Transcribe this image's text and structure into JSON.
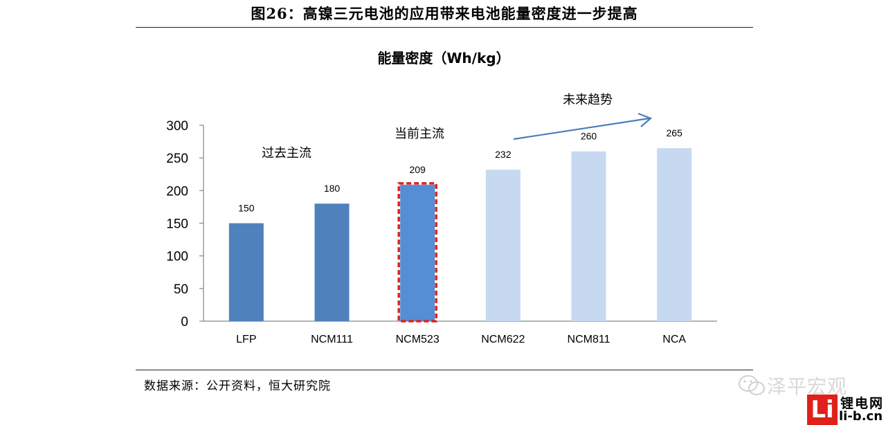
{
  "figure": {
    "title": "图26：高镍三元电池的应用带来电池能量密度进一步提高",
    "source": "数据来源：公开资料，恒大研究院"
  },
  "chart_data": {
    "type": "bar",
    "title": "能量密度（Wh/kg）",
    "categories": [
      "LFP",
      "NCM111",
      "NCM523",
      "NCM622",
      "NCM811",
      "NCA"
    ],
    "values": [
      150,
      180,
      209,
      232,
      260,
      265
    ],
    "ylim": [
      0,
      300
    ],
    "yticks": [
      0,
      50,
      100,
      150,
      200,
      250,
      300
    ],
    "grid": false,
    "bar_colors": [
      "#4f81bd",
      "#4f81bd",
      "#558ed5",
      "#c6d9f1",
      "#c6d9f1",
      "#c6d9f1"
    ],
    "highlight": {
      "category": "NCM523",
      "border_color": "#e0201b",
      "style": "dashed"
    },
    "annotations": {
      "past": "过去主流",
      "current": "当前主流",
      "future": "未来趋势"
    },
    "arrow_color": "#4a7ebb"
  },
  "watermark": {
    "text": "泽平宏观",
    "logo_letters": "Li",
    "logo_cn": "锂电网",
    "logo_en": "li-b.cn"
  }
}
